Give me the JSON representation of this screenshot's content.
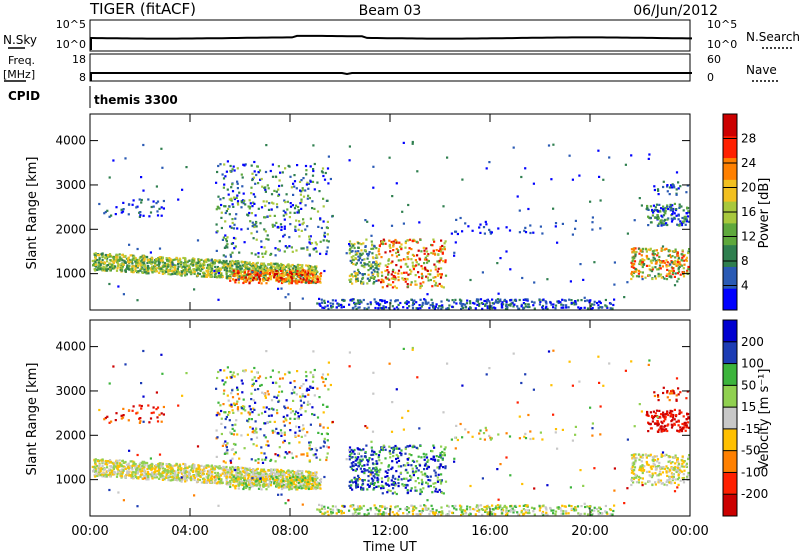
{
  "header": {
    "left": "TIGER (fitACF)",
    "center": "Beam 03",
    "right": "06/Jun/2012"
  },
  "strip_sky": {
    "left_label": "N.Sky",
    "left_ticks": [
      "10^5",
      "10^0"
    ],
    "right_label": "N.Search",
    "right_ticks": [
      "10^5",
      "10^0"
    ]
  },
  "strip_freq": {
    "left_label_1": "Freq.",
    "left_label_2": "[MHz]",
    "left_ticks": [
      "18",
      "8"
    ],
    "right_label": "Nave",
    "right_ticks": [
      "60",
      "0"
    ]
  },
  "strip_cpid": {
    "label": "CPID",
    "text": "themis 3300"
  },
  "chart_data": [
    {
      "type": "heatmap",
      "panel": "power",
      "title": "",
      "xlabel": "",
      "ylabel": "Slant Range [km]",
      "xlim": [
        "00:00",
        "24:00"
      ],
      "ylim": [
        180,
        4600
      ],
      "yticks": [
        "1000",
        "2000",
        "3000",
        "4000"
      ],
      "colorbar": {
        "label": "Power [dB]",
        "ticks": [
          "28",
          "24",
          "20",
          "16",
          "12",
          "8",
          "4"
        ],
        "colors": [
          "#0000ff",
          "#2a5ab4",
          "#2f7f4f",
          "#5ea83c",
          "#a8c83c",
          "#f2c020",
          "#ff8000",
          "#ff2000",
          "#cc0000"
        ]
      },
      "regions": [
        {
          "t": [
            0.0,
            9.2
          ],
          "r": [
            900,
            1500
          ],
          "level": "12-20 dB"
        },
        {
          "t": [
            5.5,
            9.2
          ],
          "r": [
            800,
            1100
          ],
          "level": "24-28 dB"
        },
        {
          "t": [
            5.5,
            9.5
          ],
          "r": [
            1400,
            3500
          ],
          "level": "4-16 dB"
        },
        {
          "t": [
            10.3,
            14.2
          ],
          "r": [
            700,
            1800
          ],
          "level": "8-28 dB"
        },
        {
          "t": [
            9.0,
            21.0
          ],
          "r": [
            200,
            450
          ],
          "level": "4-12 dB"
        },
        {
          "t": [
            21.6,
            24.0
          ],
          "r": [
            900,
            1600
          ],
          "level": "12-24 dB"
        },
        {
          "t": [
            22.2,
            24.0
          ],
          "r": [
            2100,
            2600
          ],
          "level": "4-16 dB"
        }
      ]
    },
    {
      "type": "heatmap",
      "panel": "velocity",
      "title": "",
      "xlabel": "Time UT",
      "ylabel": "Slant Range [km]",
      "xlim": [
        "00:00",
        "24:00"
      ],
      "ylim": [
        180,
        4600
      ],
      "xticks": [
        "00:00",
        "04:00",
        "08:00",
        "12:00",
        "16:00",
        "20:00",
        "00:00"
      ],
      "yticks": [
        "1000",
        "2000",
        "3000",
        "4000"
      ],
      "colorbar": {
        "label": "Velocity [m s⁻¹]",
        "ticks": [
          "200",
          "100",
          "50",
          "15",
          "-15",
          "-50",
          "-100",
          "-200"
        ],
        "colors": [
          "#cc0000",
          "#ff2000",
          "#ff8000",
          "#ffc000",
          "#c8c8c8",
          "#90d050",
          "#3cb43c",
          "#1c3cb4",
          "#0000d0"
        ]
      },
      "regions": [
        {
          "t": [
            0.0,
            9.2
          ],
          "r": [
            900,
            1500
          ],
          "level": "-15 to 15 m/s"
        },
        {
          "t": [
            10.3,
            14.2
          ],
          "r": [
            700,
            1800
          ],
          "level": "50 to 200 m/s"
        },
        {
          "t": [
            21.6,
            24.0
          ],
          "r": [
            1900,
            2600
          ],
          "level": "-100 to -200 m/s"
        },
        {
          "t": [
            9.0,
            21.0
          ],
          "r": [
            200,
            450
          ],
          "level": "-15 to 50 m/s"
        }
      ]
    }
  ]
}
